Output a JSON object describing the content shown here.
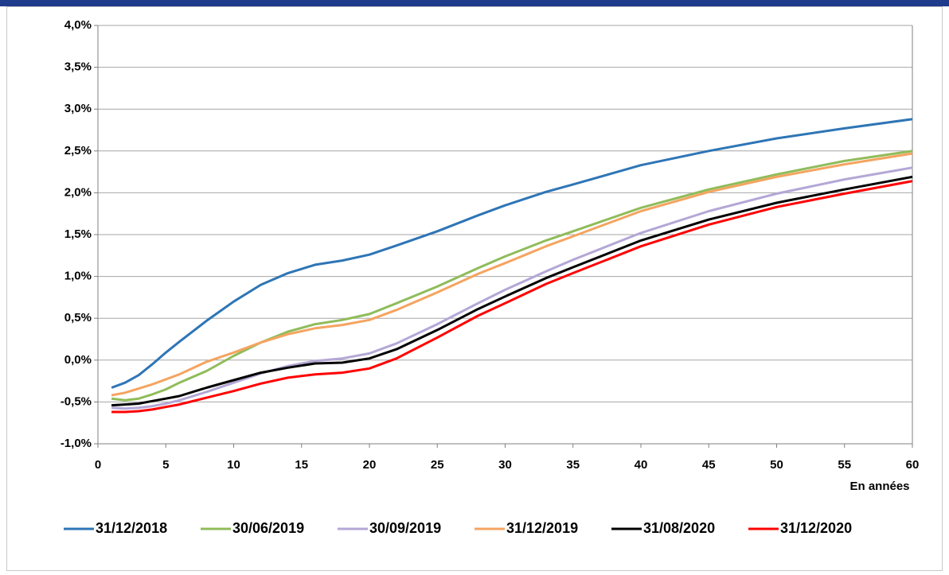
{
  "chart_data": {
    "type": "line",
    "x": [
      1,
      2,
      3,
      4,
      5,
      6,
      8,
      10,
      12,
      14,
      16,
      18,
      20,
      22,
      25,
      28,
      30,
      33,
      35,
      40,
      45,
      50,
      55,
      60
    ],
    "series": [
      {
        "name": "31/12/2018",
        "color": "#2e75b6",
        "values": [
          -0.33,
          -0.27,
          -0.18,
          -0.05,
          0.09,
          0.22,
          0.47,
          0.7,
          0.9,
          1.04,
          1.14,
          1.19,
          1.26,
          1.37,
          1.54,
          1.73,
          1.85,
          2.01,
          2.1,
          2.33,
          2.5,
          2.65,
          2.77,
          2.88
        ]
      },
      {
        "name": "30/06/2019",
        "color": "#8fbc5a",
        "values": [
          -0.46,
          -0.48,
          -0.46,
          -0.41,
          -0.35,
          -0.27,
          -0.13,
          0.05,
          0.21,
          0.34,
          0.43,
          0.48,
          0.55,
          0.68,
          0.88,
          1.1,
          1.24,
          1.43,
          1.54,
          1.82,
          2.04,
          2.22,
          2.38,
          2.5
        ]
      },
      {
        "name": "30/09/2019",
        "color": "#b4a7d6",
        "values": [
          -0.57,
          -0.58,
          -0.57,
          -0.55,
          -0.52,
          -0.48,
          -0.38,
          -0.27,
          -0.16,
          -0.07,
          -0.01,
          0.02,
          0.08,
          0.2,
          0.43,
          0.68,
          0.84,
          1.06,
          1.2,
          1.52,
          1.78,
          1.99,
          2.16,
          2.3
        ]
      },
      {
        "name": "31/12/2019",
        "color": "#f4a460",
        "values": [
          -0.42,
          -0.39,
          -0.34,
          -0.29,
          -0.23,
          -0.17,
          -0.02,
          0.09,
          0.21,
          0.31,
          0.38,
          0.42,
          0.48,
          0.6,
          0.81,
          1.03,
          1.16,
          1.36,
          1.48,
          1.78,
          2.01,
          2.19,
          2.34,
          2.47
        ]
      },
      {
        "name": "31/08/2020",
        "color": "#000000",
        "values": [
          -0.54,
          -0.53,
          -0.52,
          -0.49,
          -0.46,
          -0.43,
          -0.33,
          -0.24,
          -0.15,
          -0.09,
          -0.04,
          -0.03,
          0.02,
          0.13,
          0.36,
          0.61,
          0.76,
          0.98,
          1.11,
          1.43,
          1.68,
          1.88,
          2.04,
          2.19
        ]
      },
      {
        "name": "31/12/2020",
        "color": "#ff0000",
        "values": [
          -0.62,
          -0.62,
          -0.61,
          -0.59,
          -0.56,
          -0.53,
          -0.45,
          -0.37,
          -0.28,
          -0.21,
          -0.17,
          -0.15,
          -0.1,
          0.02,
          0.27,
          0.53,
          0.68,
          0.91,
          1.04,
          1.36,
          1.62,
          1.83,
          1.99,
          2.14
        ]
      }
    ],
    "x_label": "En années",
    "xlim": [
      0,
      60
    ],
    "xticks": [
      0,
      5,
      10,
      15,
      20,
      25,
      30,
      35,
      40,
      45,
      50,
      55,
      60
    ],
    "ylim": [
      -1,
      4
    ],
    "yticks": [
      {
        "value": -1,
        "label": "-1,0%"
      },
      {
        "value": -0.5,
        "label": "-0,5%"
      },
      {
        "value": 0,
        "label": "0,0%"
      },
      {
        "value": 0.5,
        "label": "0,5%"
      },
      {
        "value": 1,
        "label": "1,0%"
      },
      {
        "value": 1.5,
        "label": "1,5%"
      },
      {
        "value": 2,
        "label": "2,0%"
      },
      {
        "value": 2.5,
        "label": "2,5%"
      },
      {
        "value": 3,
        "label": "3,0%"
      },
      {
        "value": 3.5,
        "label": "3,5%"
      },
      {
        "value": 4,
        "label": "4,0%"
      }
    ],
    "grid": true
  }
}
